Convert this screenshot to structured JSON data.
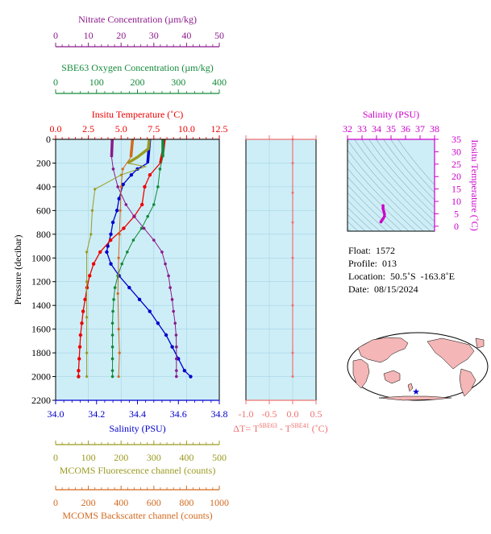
{
  "colors": {
    "nitrate": "#8b1a8b",
    "oxygen": "#138a3a",
    "temperature": "#ee0000",
    "salinity": "#0000cc",
    "fluorescence": "#9a9a20",
    "backscatter": "#d2691e",
    "dt": "#f07070",
    "ts_salinity": "#cc00cc",
    "plot_bg": "#cdeef7"
  },
  "chart_data": [
    {
      "type": "line",
      "id": "profiles",
      "ylabel": "Pressure (decibar)",
      "ylim": [
        0,
        2200
      ],
      "yticks": [
        "0",
        "200",
        "400",
        "600",
        "800",
        "1000",
        "1200",
        "1400",
        "1600",
        "1800",
        "2000",
        "2200"
      ],
      "axes": {
        "nitrate": {
          "label": "Nitrate Concentration (µm/kg)",
          "range": [
            0,
            50
          ],
          "ticks": [
            "0",
            "10",
            "20",
            "30",
            "40",
            "50"
          ]
        },
        "oxygen": {
          "label": "SBE63 Oxygen Concentration (µm/kg)",
          "range": [
            0,
            400
          ],
          "ticks": [
            "0",
            "100",
            "200",
            "300",
            "400"
          ]
        },
        "temperature": {
          "label": "Insitu Temperature (˚C)",
          "range": [
            0,
            12.5
          ],
          "ticks": [
            "0.0",
            "2.5",
            "5.0",
            "7.5",
            "10.0",
            "12.5"
          ]
        },
        "salinity": {
          "label": "Salinity (PSU)",
          "range": [
            34.0,
            34.8
          ],
          "ticks": [
            "34.0",
            "34.2",
            "34.4",
            "34.6",
            "34.8"
          ]
        },
        "fluorescence": {
          "label": "MCOMS Fluorescence channel (counts)",
          "range": [
            0,
            500
          ],
          "ticks": [
            "0",
            "100",
            "200",
            "300",
            "400",
            "500"
          ]
        },
        "backscatter": {
          "label": "MCOMS Backscatter channel (counts)",
          "range": [
            0,
            1000
          ],
          "ticks": [
            "0",
            "200",
            "400",
            "600",
            "800",
            "1000"
          ]
        }
      },
      "series": [
        {
          "name": "Salinity",
          "key": "salinity",
          "points": [
            [
              34.46,
              0
            ],
            [
              34.455,
              100
            ],
            [
              34.45,
              200
            ],
            [
              34.4,
              250
            ],
            [
              34.37,
              300
            ],
            [
              34.33,
              380
            ],
            [
              34.31,
              500
            ],
            [
              34.3,
              600
            ],
            [
              34.28,
              700
            ],
            [
              34.27,
              800
            ],
            [
              34.255,
              900
            ],
            [
              34.25,
              950
            ],
            [
              34.27,
              1050
            ],
            [
              34.31,
              1150
            ],
            [
              34.36,
              1250
            ],
            [
              34.41,
              1350
            ],
            [
              34.46,
              1450
            ],
            [
              34.5,
              1550
            ],
            [
              34.54,
              1650
            ],
            [
              34.57,
              1750
            ],
            [
              34.6,
              1850
            ],
            [
              34.63,
              1950
            ],
            [
              34.66,
              2000
            ]
          ]
        },
        {
          "name": "Insitu Temperature",
          "key": "temperature",
          "points": [
            [
              8.3,
              0
            ],
            [
              8.2,
              100
            ],
            [
              8.0,
              200
            ],
            [
              7.2,
              300
            ],
            [
              6.8,
              400
            ],
            [
              6.6,
              550
            ],
            [
              6.0,
              650
            ],
            [
              5.2,
              750
            ],
            [
              4.2,
              850
            ],
            [
              3.4,
              950
            ],
            [
              2.9,
              1050
            ],
            [
              2.6,
              1150
            ],
            [
              2.4,
              1250
            ],
            [
              2.25,
              1350
            ],
            [
              2.1,
              1450
            ],
            [
              2.0,
              1550
            ],
            [
              1.9,
              1650
            ],
            [
              1.85,
              1750
            ],
            [
              1.8,
              1850
            ],
            [
              1.75,
              1950
            ],
            [
              1.75,
              2000
            ]
          ]
        },
        {
          "name": "SBE63 Oxygen Concentration",
          "key": "oxygen",
          "points": [
            [
              262,
              0
            ],
            [
              262,
              150
            ],
            [
              255,
              250
            ],
            [
              250,
              400
            ],
            [
              240,
              550
            ],
            [
              225,
              650
            ],
            [
              210,
              750
            ],
            [
              190,
              850
            ],
            [
              175,
              950
            ],
            [
              162,
              1050
            ],
            [
              152,
              1150
            ],
            [
              145,
              1250
            ],
            [
              142,
              1350
            ],
            [
              140,
              1450
            ],
            [
              139,
              1550
            ],
            [
              139,
              1650
            ],
            [
              139,
              1750
            ],
            [
              139,
              1850
            ],
            [
              139,
              1950
            ],
            [
              139,
              2000
            ]
          ]
        },
        {
          "name": "Nitrate Concentration",
          "key": "nitrate",
          "points": [
            [
              17.3,
              0
            ],
            [
              17.1,
              150
            ],
            [
              17.6,
              250
            ],
            [
              19,
              400
            ],
            [
              21.5,
              550
            ],
            [
              24,
              650
            ],
            [
              27,
              750
            ],
            [
              30,
              850
            ],
            [
              32.5,
              950
            ],
            [
              33.5,
              1050
            ],
            [
              34.5,
              1150
            ],
            [
              35,
              1250
            ],
            [
              35.6,
              1350
            ],
            [
              36,
              1450
            ],
            [
              36.5,
              1550
            ],
            [
              36.8,
              1650
            ],
            [
              36.9,
              1750
            ],
            [
              36.9,
              1850
            ],
            [
              36.9,
              1950
            ],
            [
              36.9,
              2000
            ]
          ]
        },
        {
          "name": "MCOMS Fluorescence channel",
          "key": "fluorescence",
          "points": [
            [
              286,
              0
            ],
            [
              283,
              80
            ],
            [
              250,
              150
            ],
            [
              220,
              200
            ],
            [
              275,
              230
            ],
            [
              200,
              300
            ],
            [
              120,
              420
            ],
            [
              112,
              600
            ],
            [
              108,
              800
            ],
            [
              95,
              950
            ],
            [
              95,
              1200
            ],
            [
              95,
              1500
            ],
            [
              95,
              1800
            ],
            [
              95,
              2000
            ]
          ]
        },
        {
          "name": "MCOMS Backscatter channel",
          "key": "backscatter",
          "points": [
            [
              470,
              0
            ],
            [
              460,
              150
            ],
            [
              410,
              250
            ],
            [
              400,
              400
            ],
            [
              395,
              600
            ],
            [
              390,
              800
            ],
            [
              385,
              1000
            ],
            [
              380,
              1300
            ],
            [
              385,
              1600
            ],
            [
              390,
              1800
            ],
            [
              385,
              2000
            ]
          ]
        }
      ]
    },
    {
      "type": "line",
      "id": "delta_t",
      "xlabel_main": "ΔT= T",
      "xlabel_sup1": "SBE63",
      "xlabel_mid": " - T",
      "xlabel_sup2": "SBE41",
      "xlabel_unit": " (˚C)",
      "xlim": [
        -1.0,
        0.5
      ],
      "xticks": [
        "-1.0",
        "-0.5",
        "0.0",
        "0.5"
      ],
      "ylim": [
        0,
        2200
      ],
      "series": [
        {
          "name": "ΔT",
          "points": [
            [
              0.0,
              0
            ],
            [
              0.0,
              200
            ],
            [
              0.0,
              450
            ],
            [
              0.0,
              700
            ],
            [
              0.0,
              1000
            ],
            [
              0.0,
              1400
            ],
            [
              0.0,
              1800
            ],
            [
              0.0,
              2000
            ]
          ]
        }
      ]
    },
    {
      "type": "scatter",
      "id": "ts_diagram",
      "xlabel": "Salinity (PSU)",
      "ylabel": "Insitu Temperature (˚C)",
      "xlim": [
        32,
        38
      ],
      "ylim": [
        -2,
        35
      ],
      "xticks": [
        "32",
        "33",
        "34",
        "35",
        "36",
        "37",
        "38"
      ],
      "yticks": [
        "0",
        "5",
        "10",
        "15",
        "20",
        "25",
        "30",
        "35"
      ],
      "points": [
        [
          34.3,
          1.7
        ],
        [
          34.35,
          2.2
        ],
        [
          34.45,
          3.0
        ],
        [
          34.55,
          4.0
        ],
        [
          34.55,
          5.0
        ],
        [
          34.5,
          6.0
        ],
        [
          34.45,
          7.0
        ],
        [
          34.45,
          7.8
        ],
        [
          34.45,
          8.3
        ]
      ]
    }
  ],
  "float_info": {
    "float_label": "Float:",
    "float_value": "1572",
    "profile_label": "Profile:",
    "profile_value": "013",
    "location_label": "Location:",
    "location_value": "50.5˚S  -163.8˚E",
    "date_label": "Date:",
    "date_value": "08/15/2024"
  }
}
